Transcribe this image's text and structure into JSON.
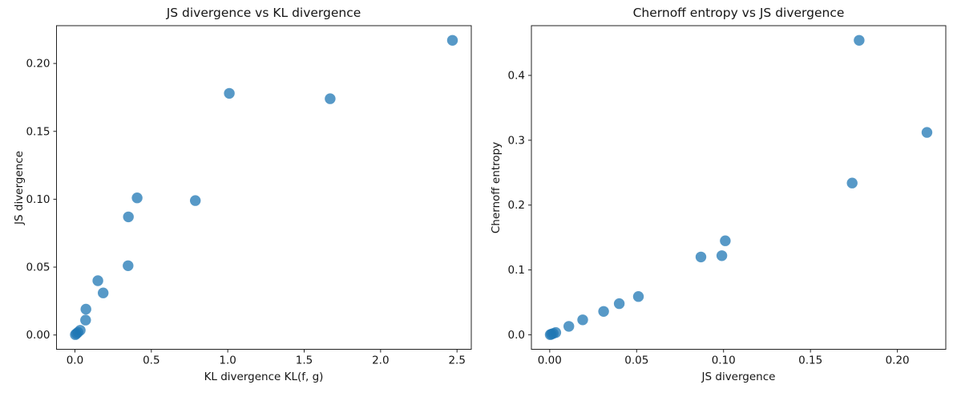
{
  "figure": {
    "background": "#ffffff",
    "text_color": "#151515",
    "spine_color": "#222222"
  },
  "dataset": {
    "kl_divergence": [
      0.003,
      0.01,
      0.02,
      0.035,
      0.07,
      0.072,
      0.15,
      0.185,
      0.348,
      0.35,
      0.407,
      0.788,
      1.01,
      1.67,
      2.47
    ],
    "js_divergence": [
      0.0003,
      0.001,
      0.002,
      0.0035,
      0.011,
      0.019,
      0.04,
      0.031,
      0.051,
      0.087,
      0.101,
      0.099,
      0.178,
      0.174,
      0.217
    ],
    "chernoff_entropy": [
      0.0003,
      0.001,
      0.002,
      0.0035,
      0.013,
      0.023,
      0.048,
      0.036,
      0.059,
      0.12,
      0.145,
      0.122,
      0.454,
      0.234,
      0.312
    ]
  },
  "chart_data": [
    {
      "type": "scatter",
      "title": "JS divergence vs KL divergence",
      "xlabel": "KL divergence KL(f, g)",
      "ylabel": "JS divergence",
      "x": [
        0.003,
        0.01,
        0.02,
        0.035,
        0.07,
        0.072,
        0.15,
        0.185,
        0.348,
        0.35,
        0.407,
        0.788,
        1.01,
        1.67,
        2.47
      ],
      "y": [
        0.0003,
        0.001,
        0.002,
        0.0035,
        0.011,
        0.019,
        0.04,
        0.031,
        0.051,
        0.087,
        0.101,
        0.099,
        0.178,
        0.174,
        0.217
      ],
      "xlim": [
        -0.1204,
        2.5934
      ],
      "ylim": [
        -0.01053,
        0.22784
      ],
      "xticks": [
        0.0,
        0.5,
        1.0,
        1.5,
        2.0,
        2.5
      ],
      "xtick_labels": [
        "0.0",
        "0.5",
        "1.0",
        "1.5",
        "2.0",
        "2.5"
      ],
      "yticks": [
        0.0,
        0.05,
        0.1,
        0.15,
        0.2
      ],
      "ytick_labels": [
        "0.00",
        "0.05",
        "0.10",
        "0.15",
        "0.20"
      ],
      "grid": false,
      "legend": null,
      "marker": {
        "color": "#1f77b4",
        "alpha": 0.75,
        "radius_px": 6.7
      }
    },
    {
      "type": "scatter",
      "title": "Chernoff entropy vs JS divergence",
      "xlabel": "JS divergence",
      "ylabel": "Chernoff entropy",
      "x": [
        0.0003,
        0.001,
        0.002,
        0.0035,
        0.011,
        0.019,
        0.04,
        0.031,
        0.051,
        0.087,
        0.101,
        0.099,
        0.178,
        0.174,
        0.217
      ],
      "y": [
        0.0003,
        0.001,
        0.002,
        0.0035,
        0.013,
        0.023,
        0.048,
        0.036,
        0.059,
        0.12,
        0.145,
        0.122,
        0.454,
        0.234,
        0.312
      ],
      "xlim": [
        -0.01053,
        0.22784
      ],
      "ylim": [
        -0.02239,
        0.47669
      ],
      "xticks": [
        0.0,
        0.05,
        0.1,
        0.15,
        0.2
      ],
      "xtick_labels": [
        "0.00",
        "0.05",
        "0.10",
        "0.15",
        "0.20"
      ],
      "yticks": [
        0.0,
        0.1,
        0.2,
        0.3,
        0.4
      ],
      "ytick_labels": [
        "0.0",
        "0.1",
        "0.2",
        "0.3",
        "0.4"
      ],
      "grid": false,
      "legend": null,
      "marker": {
        "color": "#1f77b4",
        "alpha": 0.75,
        "radius_px": 6.7
      }
    }
  ]
}
